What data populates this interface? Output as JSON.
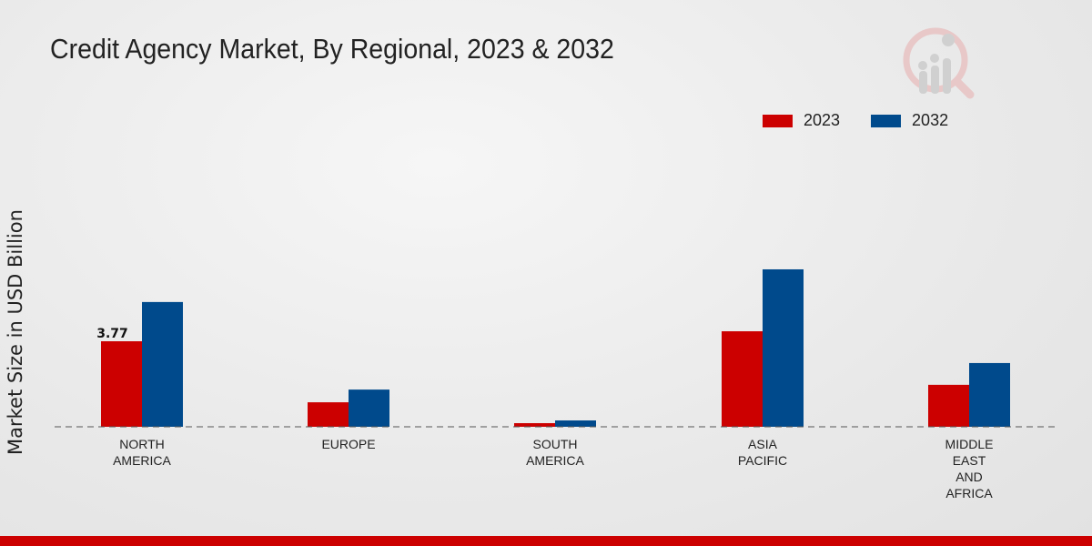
{
  "title": "Credit Agency Market, By Regional, 2023 & 2032",
  "chart_data": {
    "type": "bar",
    "title": "Credit Agency Market, By Regional, 2023 & 2032",
    "xlabel": "",
    "ylabel": "Market Size in USD Billion",
    "categories": [
      [
        "NORTH",
        "AMERICA"
      ],
      [
        "EUROPE"
      ],
      [
        "SOUTH",
        "AMERICA"
      ],
      [
        "ASIA",
        "PACIFIC"
      ],
      [
        "MIDDLE",
        "EAST",
        "AND",
        "AFRICA"
      ]
    ],
    "series": [
      {
        "name": "2023",
        "color": "#cc0000",
        "values": [
          3.77,
          1.08,
          0.16,
          4.21,
          1.85
        ]
      },
      {
        "name": "2032",
        "color": "#004a8c",
        "values": [
          5.5,
          1.64,
          0.28,
          6.94,
          2.81
        ]
      }
    ],
    "data_labels": [
      {
        "series": 0,
        "index": 0,
        "text": "3.77"
      }
    ],
    "ylim": [
      0,
      11.5
    ],
    "grid": false,
    "legend_position": "top-right"
  }
}
